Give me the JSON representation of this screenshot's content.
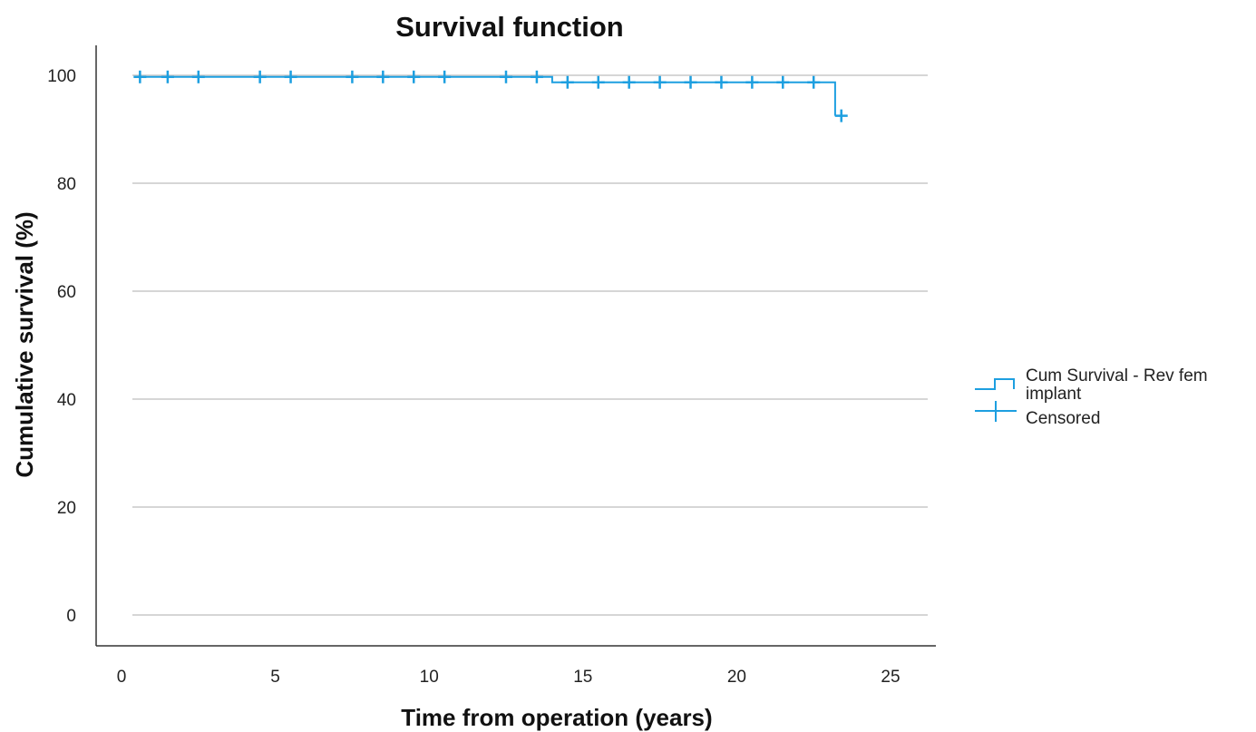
{
  "chart_data": {
    "type": "line",
    "title": "Survival function",
    "xlabel": "Time from operation (years)",
    "ylabel": "Cumulative survival (%)",
    "xlim": [
      0,
      26
    ],
    "ylim": [
      -3,
      105
    ],
    "xticks": [
      0,
      5,
      10,
      15,
      20,
      25
    ],
    "yticks": [
      0,
      20,
      40,
      60,
      80,
      100
    ],
    "grid": "horizontal",
    "legend_position": "right",
    "colors": {
      "series": "#1d9fe0",
      "grid": "#c8c8c8",
      "axis": "#333333"
    },
    "series": [
      {
        "name": "Cum Survival - Rev fem implant",
        "step": [
          {
            "x": 0.5,
            "y": 99.7
          },
          {
            "x": 14.0,
            "y": 99.7
          },
          {
            "x": 14.0,
            "y": 98.7
          },
          {
            "x": 23.2,
            "y": 98.7
          },
          {
            "x": 23.2,
            "y": 92.5
          }
        ]
      }
    ],
    "censored": {
      "name": "Censored",
      "points": [
        {
          "x": 0.6,
          "y": 99.7
        },
        {
          "x": 1.5,
          "y": 99.7
        },
        {
          "x": 2.5,
          "y": 99.7
        },
        {
          "x": 4.5,
          "y": 99.7
        },
        {
          "x": 5.5,
          "y": 99.7
        },
        {
          "x": 7.5,
          "y": 99.7
        },
        {
          "x": 8.5,
          "y": 99.7
        },
        {
          "x": 9.5,
          "y": 99.7
        },
        {
          "x": 10.5,
          "y": 99.7
        },
        {
          "x": 12.5,
          "y": 99.7
        },
        {
          "x": 13.5,
          "y": 99.7
        },
        {
          "x": 14.5,
          "y": 98.7
        },
        {
          "x": 15.5,
          "y": 98.7
        },
        {
          "x": 16.5,
          "y": 98.7
        },
        {
          "x": 17.5,
          "y": 98.7
        },
        {
          "x": 18.5,
          "y": 98.7
        },
        {
          "x": 19.5,
          "y": 98.7
        },
        {
          "x": 20.5,
          "y": 98.7
        },
        {
          "x": 21.5,
          "y": 98.7
        },
        {
          "x": 22.5,
          "y": 98.7
        },
        {
          "x": 23.4,
          "y": 92.5
        }
      ]
    },
    "legend": {
      "line1": "Cum Survival - Rev fem",
      "line2": "implant",
      "censored_label": "Censored"
    }
  }
}
